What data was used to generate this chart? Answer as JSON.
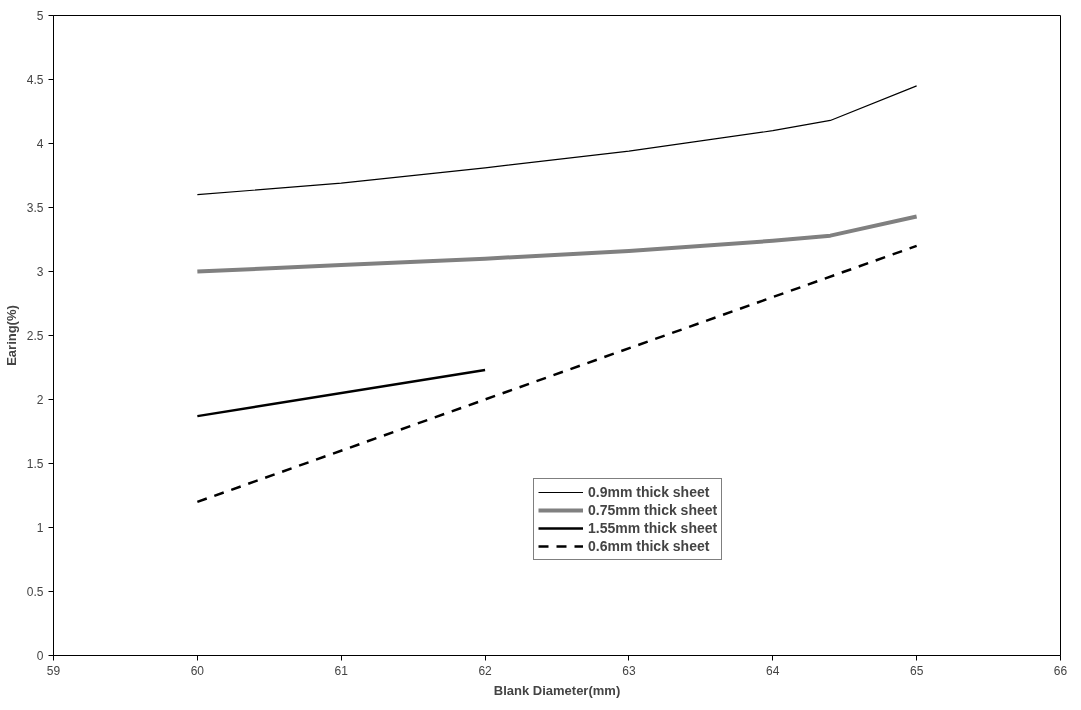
{
  "chart_data": {
    "type": "line",
    "xlabel": "Blank Diameter(mm)",
    "ylabel": "Earing(%)",
    "xlim": [
      59,
      66
    ],
    "xticks": [
      59,
      60,
      61,
      62,
      63,
      64,
      65,
      66
    ],
    "ylim": [
      0,
      5
    ],
    "yticks": [
      0,
      0.5,
      1,
      1.5,
      2,
      2.5,
      3,
      3.5,
      4,
      4.5,
      5
    ],
    "grid": false,
    "legend": "bottom",
    "marker": "none",
    "series": [
      {
        "name": "0.9mm thick sheet",
        "color": "#000000",
        "line_style": "solid",
        "x": [
          60,
          61,
          62,
          63,
          64,
          64.4,
          65
        ],
        "values": [
          3.6,
          3.69,
          3.81,
          3.94,
          4.1,
          4.18,
          4.45
        ]
      },
      {
        "name": "0.75mm thick sheet",
        "color": "#808080",
        "line_style": "solid",
        "x": [
          60,
          61,
          62,
          63,
          64,
          64.4,
          65
        ],
        "values": [
          3.0,
          3.05,
          3.1,
          3.16,
          3.24,
          3.28,
          3.43
        ]
      },
      {
        "name": "1.55mm thick sheet",
        "color": "#000000",
        "line_style": "solid",
        "x": [
          60,
          62
        ],
        "values": [
          1.87,
          2.23
        ]
      },
      {
        "name": "0.6mm thick sheet",
        "color": "#000000",
        "line_style": "dashed",
        "x": [
          60,
          65
        ],
        "values": [
          1.2,
          3.2
        ]
      }
    ]
  }
}
